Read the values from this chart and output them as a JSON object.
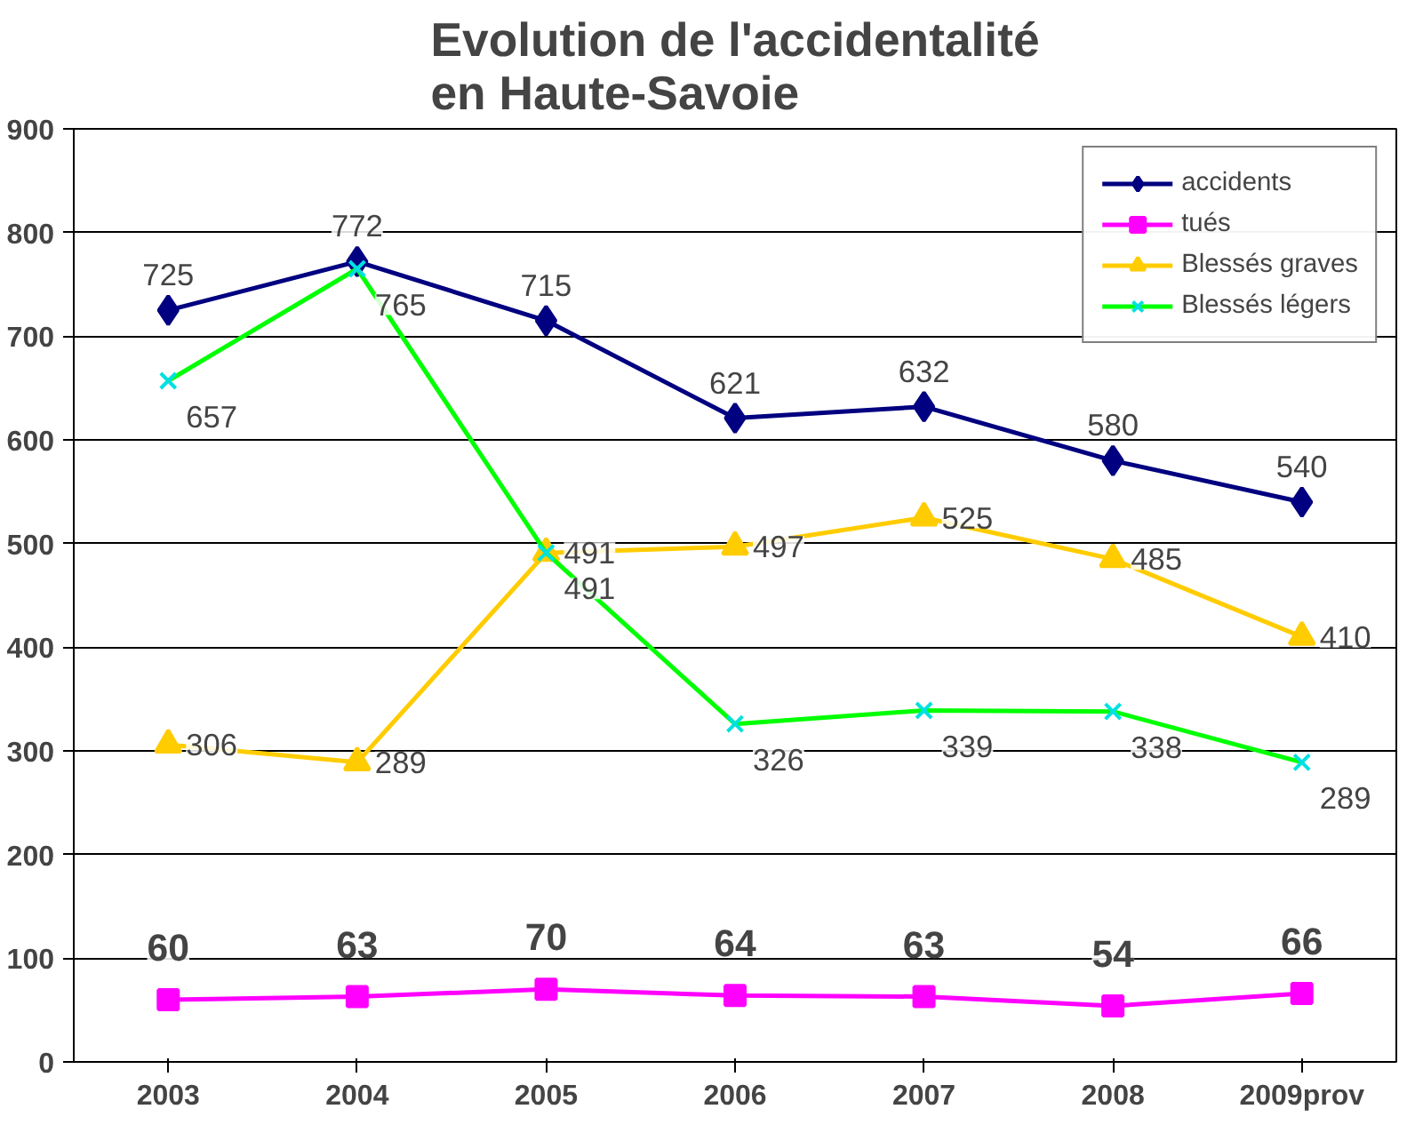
{
  "chart_data": {
    "type": "line",
    "title": "Evolution de l'accidentalité\nen Haute-Savoie",
    "categories": [
      "2003",
      "2004",
      "2005",
      "2006",
      "2007",
      "2008",
      "2009prov"
    ],
    "series": [
      {
        "name": "accidents",
        "color": "#000080",
        "marker": "diamond",
        "values": [
          725,
          772,
          715,
          621,
          632,
          580,
          540
        ]
      },
      {
        "name": "tués",
        "color": "#ff00ff",
        "marker": "square",
        "values": [
          60,
          63,
          70,
          64,
          63,
          54,
          66
        ]
      },
      {
        "name": "Blessés graves",
        "color": "#ffcc00",
        "marker": "triangle",
        "values": [
          306,
          289,
          491,
          497,
          525,
          485,
          410
        ]
      },
      {
        "name": "Blessés légers",
        "color": "#00ff00",
        "marker": "cross",
        "values": [
          657,
          765,
          491,
          326,
          339,
          338,
          289
        ]
      }
    ],
    "ylim": [
      0,
      900
    ],
    "yticks": [
      0,
      100,
      200,
      300,
      400,
      500,
      600,
      700,
      800,
      900
    ],
    "grid": "y",
    "legend": "top right",
    "data_labels": true,
    "line_style": "solid"
  }
}
